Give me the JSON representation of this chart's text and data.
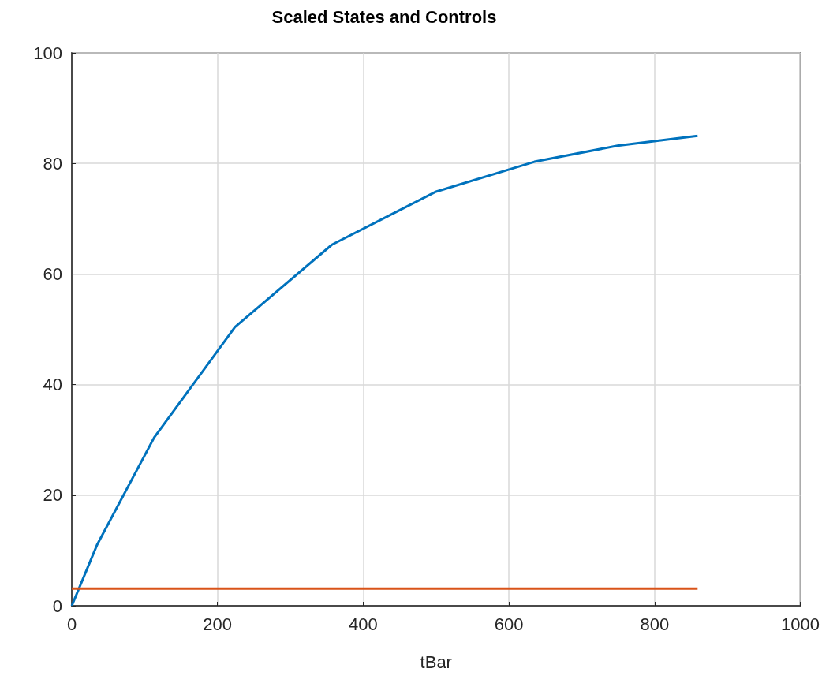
{
  "chart_data": {
    "type": "line",
    "title": "Scaled States and Controls",
    "xlabel": "tBar",
    "xlim": [
      0,
      1000
    ],
    "xticks": [
      0,
      200,
      400,
      600,
      800,
      1000
    ],
    "ylim": [
      0,
      100
    ],
    "yticks": [
      0,
      20,
      40,
      60,
      80,
      100
    ],
    "grid": true,
    "line_style": "solid",
    "marker": "none",
    "series": [
      {
        "color": "#0072bd",
        "x": [
          0,
          35,
          113,
          224,
          357,
          500,
          635,
          749,
          859
        ],
        "values": [
          0,
          11.1,
          30.4,
          50.4,
          65.3,
          74.9,
          80.3,
          83.2,
          85.0
        ]
      },
      {
        "color": "#d95319",
        "x": [
          0,
          859
        ],
        "values": [
          3.1,
          3.1
        ]
      }
    ]
  }
}
